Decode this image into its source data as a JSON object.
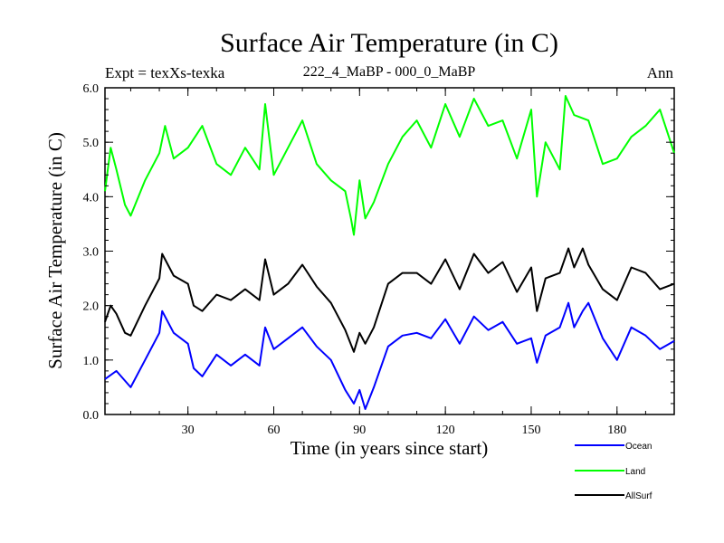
{
  "chart_data": {
    "type": "line",
    "title": "Surface Air Temperature (in C)",
    "subtitle_left": "Expt = texXs-texka",
    "subtitle_center": "222_4_MaBP - 000_0_MaBP",
    "subtitle_right": "Ann",
    "xlabel": "Time (in years since start)",
    "ylabel": "Surface Air Temperature (in C)",
    "xlim": [
      1,
      200
    ],
    "ylim": [
      0.0,
      6.0
    ],
    "xticks": [
      30,
      60,
      90,
      120,
      150,
      180
    ],
    "xtick_labels": [
      "30",
      "60",
      "90",
      "120",
      "150",
      "180"
    ],
    "yticks": [
      0.0,
      1.0,
      2.0,
      3.0,
      4.0,
      5.0,
      6.0
    ],
    "ytick_labels": [
      "0.0",
      "1.0",
      "2.0",
      "3.0",
      "4.0",
      "5.0",
      "6.0"
    ],
    "legend_position": "bottom-right-outside",
    "series": [
      {
        "name": "Ocean",
        "color": "#0000ff",
        "x": [
          1,
          5,
          10,
          15,
          20,
          21,
          25,
          30,
          32,
          35,
          40,
          45,
          50,
          55,
          57,
          60,
          65,
          70,
          75,
          80,
          85,
          88,
          90,
          92,
          95,
          100,
          105,
          110,
          115,
          120,
          125,
          130,
          135,
          140,
          145,
          150,
          152,
          155,
          160,
          163,
          165,
          168,
          170,
          175,
          180,
          185,
          190,
          195,
          200
        ],
        "values": [
          0.65,
          0.8,
          0.5,
          1.0,
          1.5,
          1.9,
          1.5,
          1.3,
          0.85,
          0.7,
          1.1,
          0.9,
          1.1,
          0.9,
          1.6,
          1.2,
          1.4,
          1.6,
          1.25,
          1.0,
          0.45,
          0.2,
          0.45,
          0.1,
          0.5,
          1.25,
          1.45,
          1.5,
          1.4,
          1.75,
          1.3,
          1.8,
          1.55,
          1.7,
          1.3,
          1.4,
          0.95,
          1.45,
          1.6,
          2.05,
          1.6,
          1.9,
          2.05,
          1.4,
          1.0,
          1.6,
          1.45,
          1.2,
          1.35
        ]
      },
      {
        "name": "Land",
        "color": "#00ff00",
        "x": [
          1,
          3,
          5,
          8,
          10,
          15,
          20,
          22,
          25,
          30,
          35,
          40,
          45,
          50,
          55,
          57,
          60,
          65,
          70,
          75,
          80,
          85,
          87,
          88,
          90,
          92,
          95,
          100,
          105,
          110,
          115,
          120,
          125,
          130,
          135,
          140,
          145,
          150,
          152,
          155,
          160,
          162,
          165,
          170,
          175,
          180,
          185,
          190,
          195,
          200
        ],
        "values": [
          4.1,
          4.9,
          4.5,
          3.85,
          3.65,
          4.3,
          4.8,
          5.3,
          4.7,
          4.9,
          5.3,
          4.6,
          4.4,
          4.9,
          4.5,
          5.7,
          4.4,
          4.9,
          5.4,
          4.6,
          4.3,
          4.1,
          3.6,
          3.3,
          4.3,
          3.6,
          3.9,
          4.6,
          5.1,
          5.4,
          4.9,
          5.7,
          5.1,
          5.8,
          5.3,
          5.4,
          4.7,
          5.6,
          4.0,
          5.0,
          4.5,
          5.85,
          5.5,
          5.4,
          4.6,
          4.7,
          5.1,
          5.3,
          5.6,
          4.8
        ]
      },
      {
        "name": "AllSurf",
        "color": "#000000",
        "x": [
          1,
          3,
          5,
          8,
          10,
          15,
          20,
          21,
          25,
          30,
          32,
          35,
          40,
          45,
          50,
          55,
          57,
          60,
          65,
          70,
          75,
          80,
          85,
          88,
          90,
          92,
          95,
          100,
          105,
          110,
          115,
          120,
          125,
          130,
          135,
          140,
          145,
          150,
          152,
          155,
          160,
          163,
          165,
          168,
          170,
          175,
          180,
          185,
          190,
          195,
          200
        ],
        "values": [
          1.7,
          2.0,
          1.85,
          1.5,
          1.45,
          2.0,
          2.5,
          2.95,
          2.55,
          2.4,
          2.0,
          1.9,
          2.2,
          2.1,
          2.3,
          2.1,
          2.85,
          2.2,
          2.4,
          2.75,
          2.35,
          2.05,
          1.55,
          1.15,
          1.5,
          1.3,
          1.6,
          2.4,
          2.6,
          2.6,
          2.4,
          2.85,
          2.3,
          2.95,
          2.6,
          2.8,
          2.25,
          2.7,
          1.9,
          2.5,
          2.6,
          3.05,
          2.7,
          3.05,
          2.75,
          2.3,
          2.1,
          2.7,
          2.6,
          2.3,
          2.4
        ]
      }
    ]
  }
}
